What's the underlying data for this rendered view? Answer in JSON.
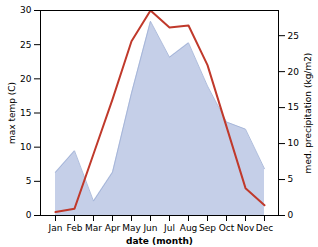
{
  "chart_data": {
    "type": "line",
    "categories": [
      "Jan",
      "Feb",
      "Mar",
      "Apr",
      "May",
      "Jun",
      "Jul",
      "Aug",
      "Sep",
      "Oct",
      "Nov",
      "Dec"
    ],
    "xlabel": "date (month)",
    "ylabel": "max temp (C)",
    "y2label": "med. precipitation (kg/m2)",
    "ylim": [
      0,
      30
    ],
    "yticks": [
      0,
      5,
      10,
      15,
      20,
      25,
      30
    ],
    "y2lim": [
      0,
      28.5
    ],
    "y2ticks": [
      0,
      5,
      10,
      15,
      20,
      25
    ],
    "series": [
      {
        "type": "area",
        "axis": "y2",
        "colors": [
          "#c5cfe8",
          "#9dafd4"
        ],
        "values": [
          6.0,
          9.0,
          2.0,
          6.0,
          17.0,
          27.0,
          22.0,
          24.0,
          18.0,
          13.0,
          12.0,
          6.5
        ]
      },
      {
        "type": "line",
        "color": "#c0392b",
        "values": [
          0.5,
          1.0,
          9.0,
          17.0,
          25.5,
          30.0,
          27.5,
          27.8,
          22.0,
          13.0,
          4.0,
          1.5
        ]
      }
    ]
  }
}
